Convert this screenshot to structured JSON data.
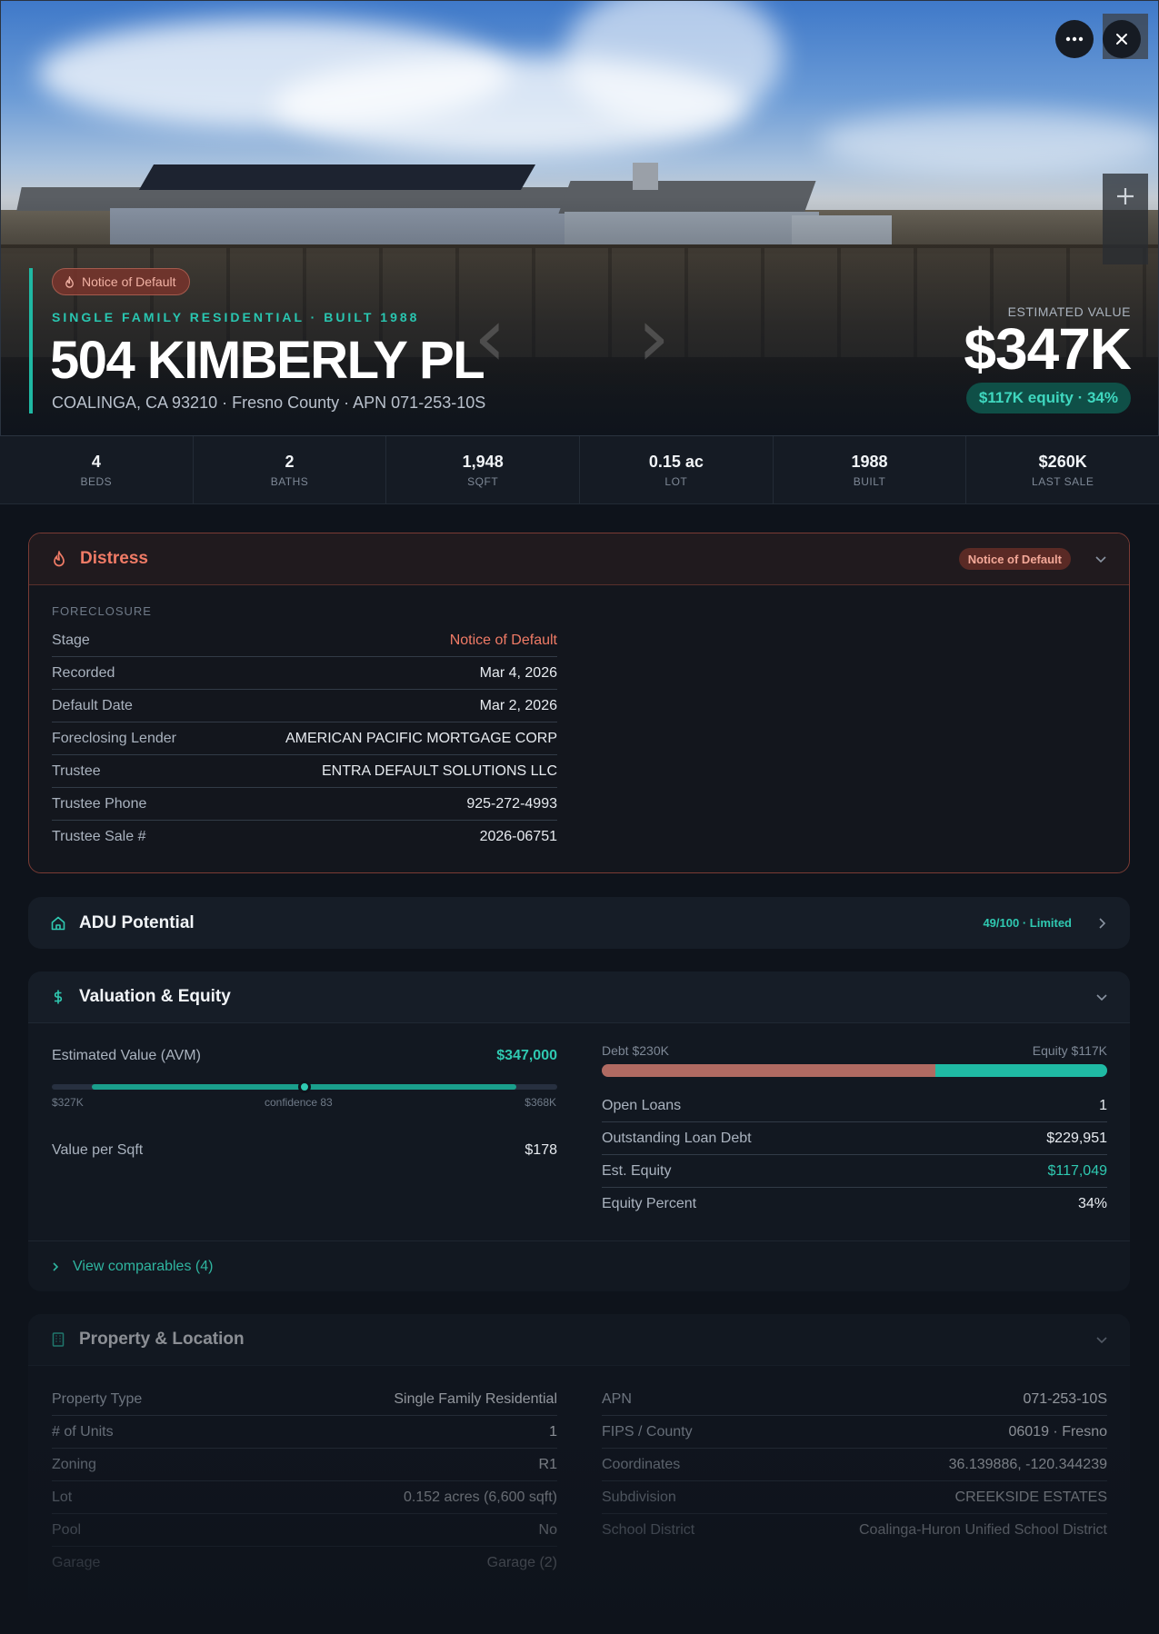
{
  "hero": {
    "badge": "Notice of Default",
    "eyebrow": "SINGLE FAMILY RESIDENTIAL · BUILT 1988",
    "address": "504 KIMBERLY PL",
    "subaddress": "COALINGA, CA 93210 · Fresno County · APN 071-253-10S",
    "estimated_label": "ESTIMATED VALUE",
    "estimated_value": "$347K",
    "equity_pill": "$117K equity · 34%",
    "more_icon": "more-horizontal-icon",
    "close_icon": "close-icon",
    "zoom_icon": "plus-icon"
  },
  "stats": [
    {
      "value": "4",
      "label": "BEDS"
    },
    {
      "value": "2",
      "label": "BATHS"
    },
    {
      "value": "1,948",
      "label": "SQFT"
    },
    {
      "value": "0.15 ac",
      "label": "LOT"
    },
    {
      "value": "1988",
      "label": "BUILT"
    },
    {
      "value": "$260K",
      "label": "LAST SALE"
    }
  ],
  "distress": {
    "title": "Distress",
    "badge": "Notice of Default",
    "section_label": "FORECLOSURE",
    "rows": [
      {
        "k": "Stage",
        "v": "Notice of Default"
      },
      {
        "k": "Recorded",
        "v": "Mar 4, 2026"
      },
      {
        "k": "Default Date",
        "v": "Mar 2, 2026"
      },
      {
        "k": "Foreclosing Lender",
        "v": "AMERICAN PACIFIC MORTGAGE CORP"
      },
      {
        "k": "Trustee",
        "v": "ENTRA DEFAULT SOLUTIONS LLC"
      },
      {
        "k": "Trustee Phone",
        "v": "925-272-4993"
      },
      {
        "k": "Trustee Sale #",
        "v": "2026-06751"
      }
    ]
  },
  "adu": {
    "title": "ADU Potential",
    "score": "49/100 · Limited"
  },
  "valuation": {
    "title": "Valuation & Equity",
    "avm_label": "Estimated Value (AVM)",
    "avm_value": "$347,000",
    "range_low": "$327K",
    "range_mid": "confidence 83",
    "range_high": "$368K",
    "range_position": 0.5,
    "vps_label": "Value per Sqft",
    "vps_value": "$178",
    "debt_label": "Debt $230K",
    "equity_label": "Equity $117K",
    "debt_fraction": 0.66,
    "rows": [
      {
        "k": "Open Loans",
        "v": "1"
      },
      {
        "k": "Outstanding Loan Debt",
        "v": "$229,951"
      },
      {
        "k": "Est. Equity",
        "v": "$117,049"
      },
      {
        "k": "Equity Percent",
        "v": "34%"
      }
    ],
    "comps_link": "View comparables (4)"
  },
  "property": {
    "title": "Property & Location",
    "left_rows": [
      {
        "k": "Property Type",
        "v": "Single Family Residential"
      },
      {
        "k": "# of Units",
        "v": "1"
      },
      {
        "k": "Zoning",
        "v": "R1"
      },
      {
        "k": "Lot",
        "v": "0.152 acres (6,600 sqft)"
      },
      {
        "k": "Pool",
        "v": "No"
      },
      {
        "k": "Garage",
        "v": "Garage (2)"
      }
    ],
    "right_rows": [
      {
        "k": "APN",
        "v": "071-253-10S"
      },
      {
        "k": "FIPS / County",
        "v": "06019 · Fresno"
      },
      {
        "k": "Coordinates",
        "v": "36.139886, -120.344239"
      },
      {
        "k": "Subdivision",
        "v": "CREEKSIDE ESTATES"
      },
      {
        "k": "School District",
        "v": "Coalinga-Huron Unified School District"
      }
    ]
  },
  "colors": {
    "accent": "#1fb8a3",
    "distress": "#f07b66",
    "background": "#0e131b"
  }
}
